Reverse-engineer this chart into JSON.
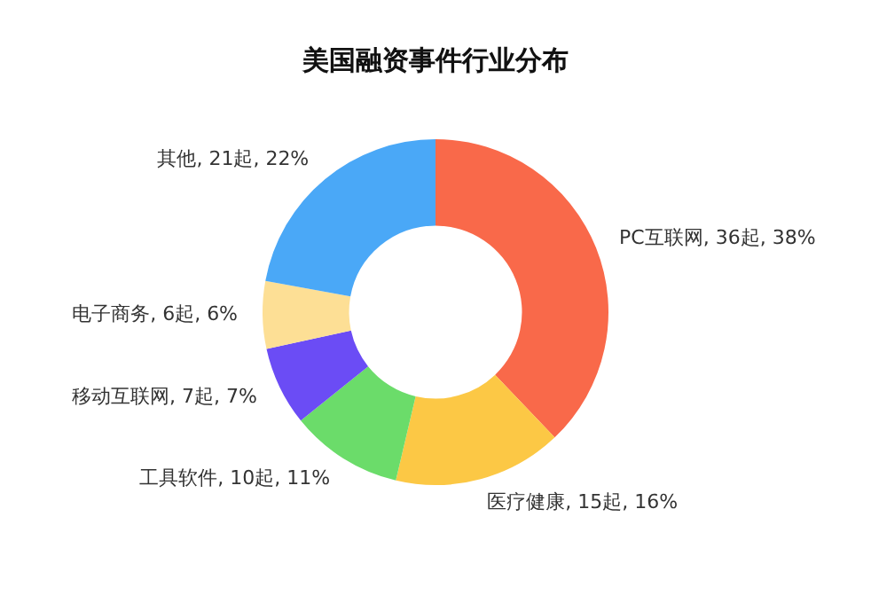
{
  "chart_data": {
    "type": "donut",
    "title": "美国融资事件行业分布",
    "categories": [
      "PC互联网",
      "医疗健康",
      "工具软件",
      "移动互联网",
      "电子商务",
      "其他"
    ],
    "values": [
      36,
      15,
      10,
      7,
      6,
      21
    ],
    "value_labels": [
      "36起, 38%",
      "15起, 16%",
      "10起, 11%",
      "7起, 7%",
      "6起, 6%",
      "21起, 22%"
    ],
    "colors": [
      "#f9694a",
      "#fcc845",
      "#6bdc6a",
      "#6b4cf5",
      "#fddf95",
      "#4aa8f7"
    ],
    "legend": false
  }
}
